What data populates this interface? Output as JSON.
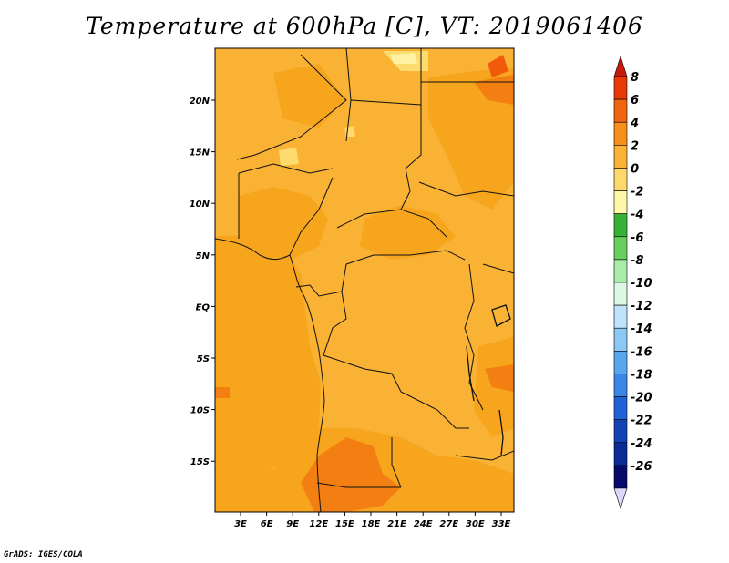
{
  "title": "Temperature at 600hPa [C], VT: 2019061406",
  "credit": "GrADS: IGES/COLA",
  "map": {
    "lon_labels": [
      "3E",
      "6E",
      "9E",
      "12E",
      "15E",
      "18E",
      "21E",
      "24E",
      "27E",
      "30E",
      "33E"
    ],
    "lat_labels": [
      "20N",
      "15N",
      "10N",
      "5N",
      "EQ",
      "5S",
      "10S",
      "15S"
    ],
    "base_color": "#f9b233",
    "colors": {
      "warm_patch": "#f7a51c",
      "hot_patch": "#f37f12",
      "very_hot": "#f05a0a",
      "cool_patch": "#fddb6e",
      "coolest": "#fef1a1",
      "border": "#111111"
    }
  },
  "colorbar": {
    "labels": [
      "8",
      "6",
      "4",
      "2",
      "0",
      "-2",
      "-4",
      "-6",
      "-8",
      "-10",
      "-12",
      "-14",
      "-16",
      "-18",
      "-20",
      "-22",
      "-24",
      "-26"
    ],
    "colors": [
      "#c9190b",
      "#e83a06",
      "#f2650f",
      "#f6901a",
      "#f9b233",
      "#fdd86b",
      "#fef6a9",
      "#37b236",
      "#68cf5f",
      "#a9ecaa",
      "#dcf8e2",
      "#bfe3fb",
      "#8dc8f5",
      "#5aa6ee",
      "#3a86e4",
      "#1f63d6",
      "#1342b4",
      "#0b2a96",
      "#060a6a",
      "#dcd8fb"
    ]
  }
}
